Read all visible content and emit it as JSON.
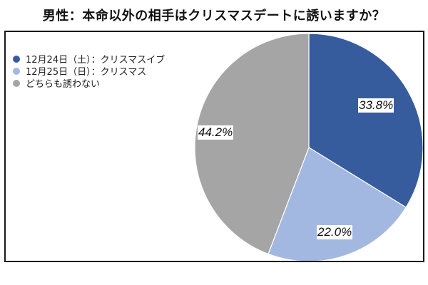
{
  "chart_data": {
    "type": "pie",
    "title": "男性：本命以外の相手はクリスマスデートに誘いますか？",
    "categories": [
      "12月24日（土）：クリスマスイブ",
      "12月25日（日）：クリスマス",
      "どちらも誘わない"
    ],
    "values": [
      33.8,
      22.0,
      44.2
    ],
    "labels": [
      "33.8%",
      "22.0%",
      "44.2%"
    ],
    "colors": [
      "#365c9e",
      "#a3b8e0",
      "#a5a5a5"
    ],
    "start_angle": "12 o'clock",
    "direction": "clockwise",
    "legend_position": "top-left"
  },
  "legend": {
    "items": [
      {
        "label": "12月24日（土）：クリスマスイブ",
        "color": "#365c9e"
      },
      {
        "label": "12月25日（日）：クリスマス",
        "color": "#a3b8e0"
      },
      {
        "label": "どちらも誘わない",
        "color": "#a5a5a5"
      }
    ]
  }
}
